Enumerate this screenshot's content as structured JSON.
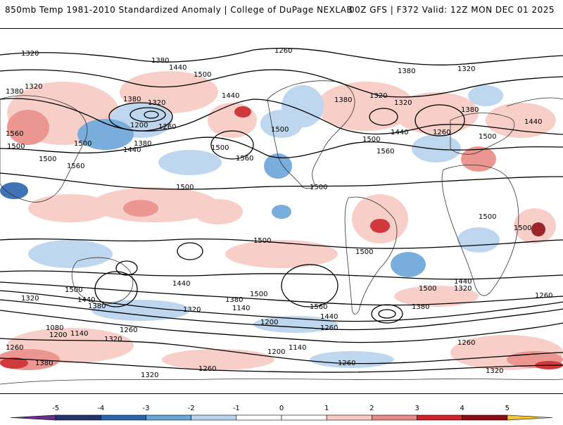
{
  "header": {
    "title": "850mb Temp 1981-2010 Standardized Anomaly | College of DuPage NEXLAB",
    "run_info": "00Z GFS | F372 Valid: 12Z MON DEC 01 2025"
  },
  "map": {
    "projection": "equirectangular",
    "field": "850mb temperature standardized anomaly",
    "contour_labels": [
      "1320",
      "1380",
      "1440",
      "1500",
      "1560",
      "1260",
      "1200",
      "1140",
      "1080"
    ]
  },
  "colorbar": {
    "ticks": [
      "-5",
      "-4",
      "-3",
      "-2",
      "-1",
      "0",
      "1",
      "2",
      "3",
      "4",
      "5"
    ],
    "colors": [
      "#6a2c91",
      "#25346d",
      "#2b64ae",
      "#6aa5d9",
      "#b7d3ee",
      "#ffffff",
      "#ffffff",
      "#f7c9c3",
      "#e98b84",
      "#cc2428",
      "#8e0d12",
      "#f4c430"
    ]
  }
}
